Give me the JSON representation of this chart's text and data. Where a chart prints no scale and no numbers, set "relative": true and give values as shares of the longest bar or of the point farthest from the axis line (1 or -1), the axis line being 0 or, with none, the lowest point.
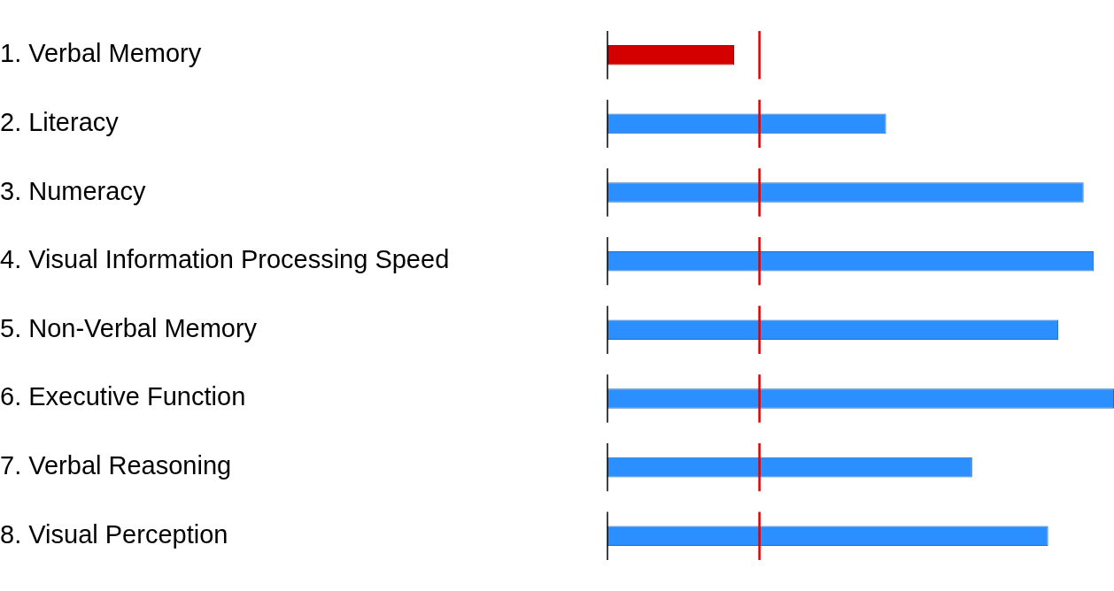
{
  "chart_data": {
    "type": "bar",
    "orientation": "horizontal",
    "relative": true,
    "categories": [
      "1. Verbal Memory",
      "2. Literacy",
      "3. Numeracy",
      "4. Visual Information Processing Speed",
      "5. Non-Verbal Memory",
      "6. Executive Function",
      "7. Verbal Reasoning",
      "8. Visual Perception"
    ],
    "values": [
      0.25,
      0.55,
      0.94,
      0.96,
      0.89,
      1,
      0.72,
      0.87
    ],
    "colors": [
      "#d40000",
      "#2b8fff",
      "#2b8fff",
      "#2b8fff",
      "#2b8fff",
      "#2b8fff",
      "#2b8fff",
      "#2b8fff"
    ],
    "ref_lines": [
      {
        "axis": "x",
        "value": 0.3,
        "color": "#e00000"
      }
    ],
    "legend": false,
    "tick_labels": "y"
  }
}
